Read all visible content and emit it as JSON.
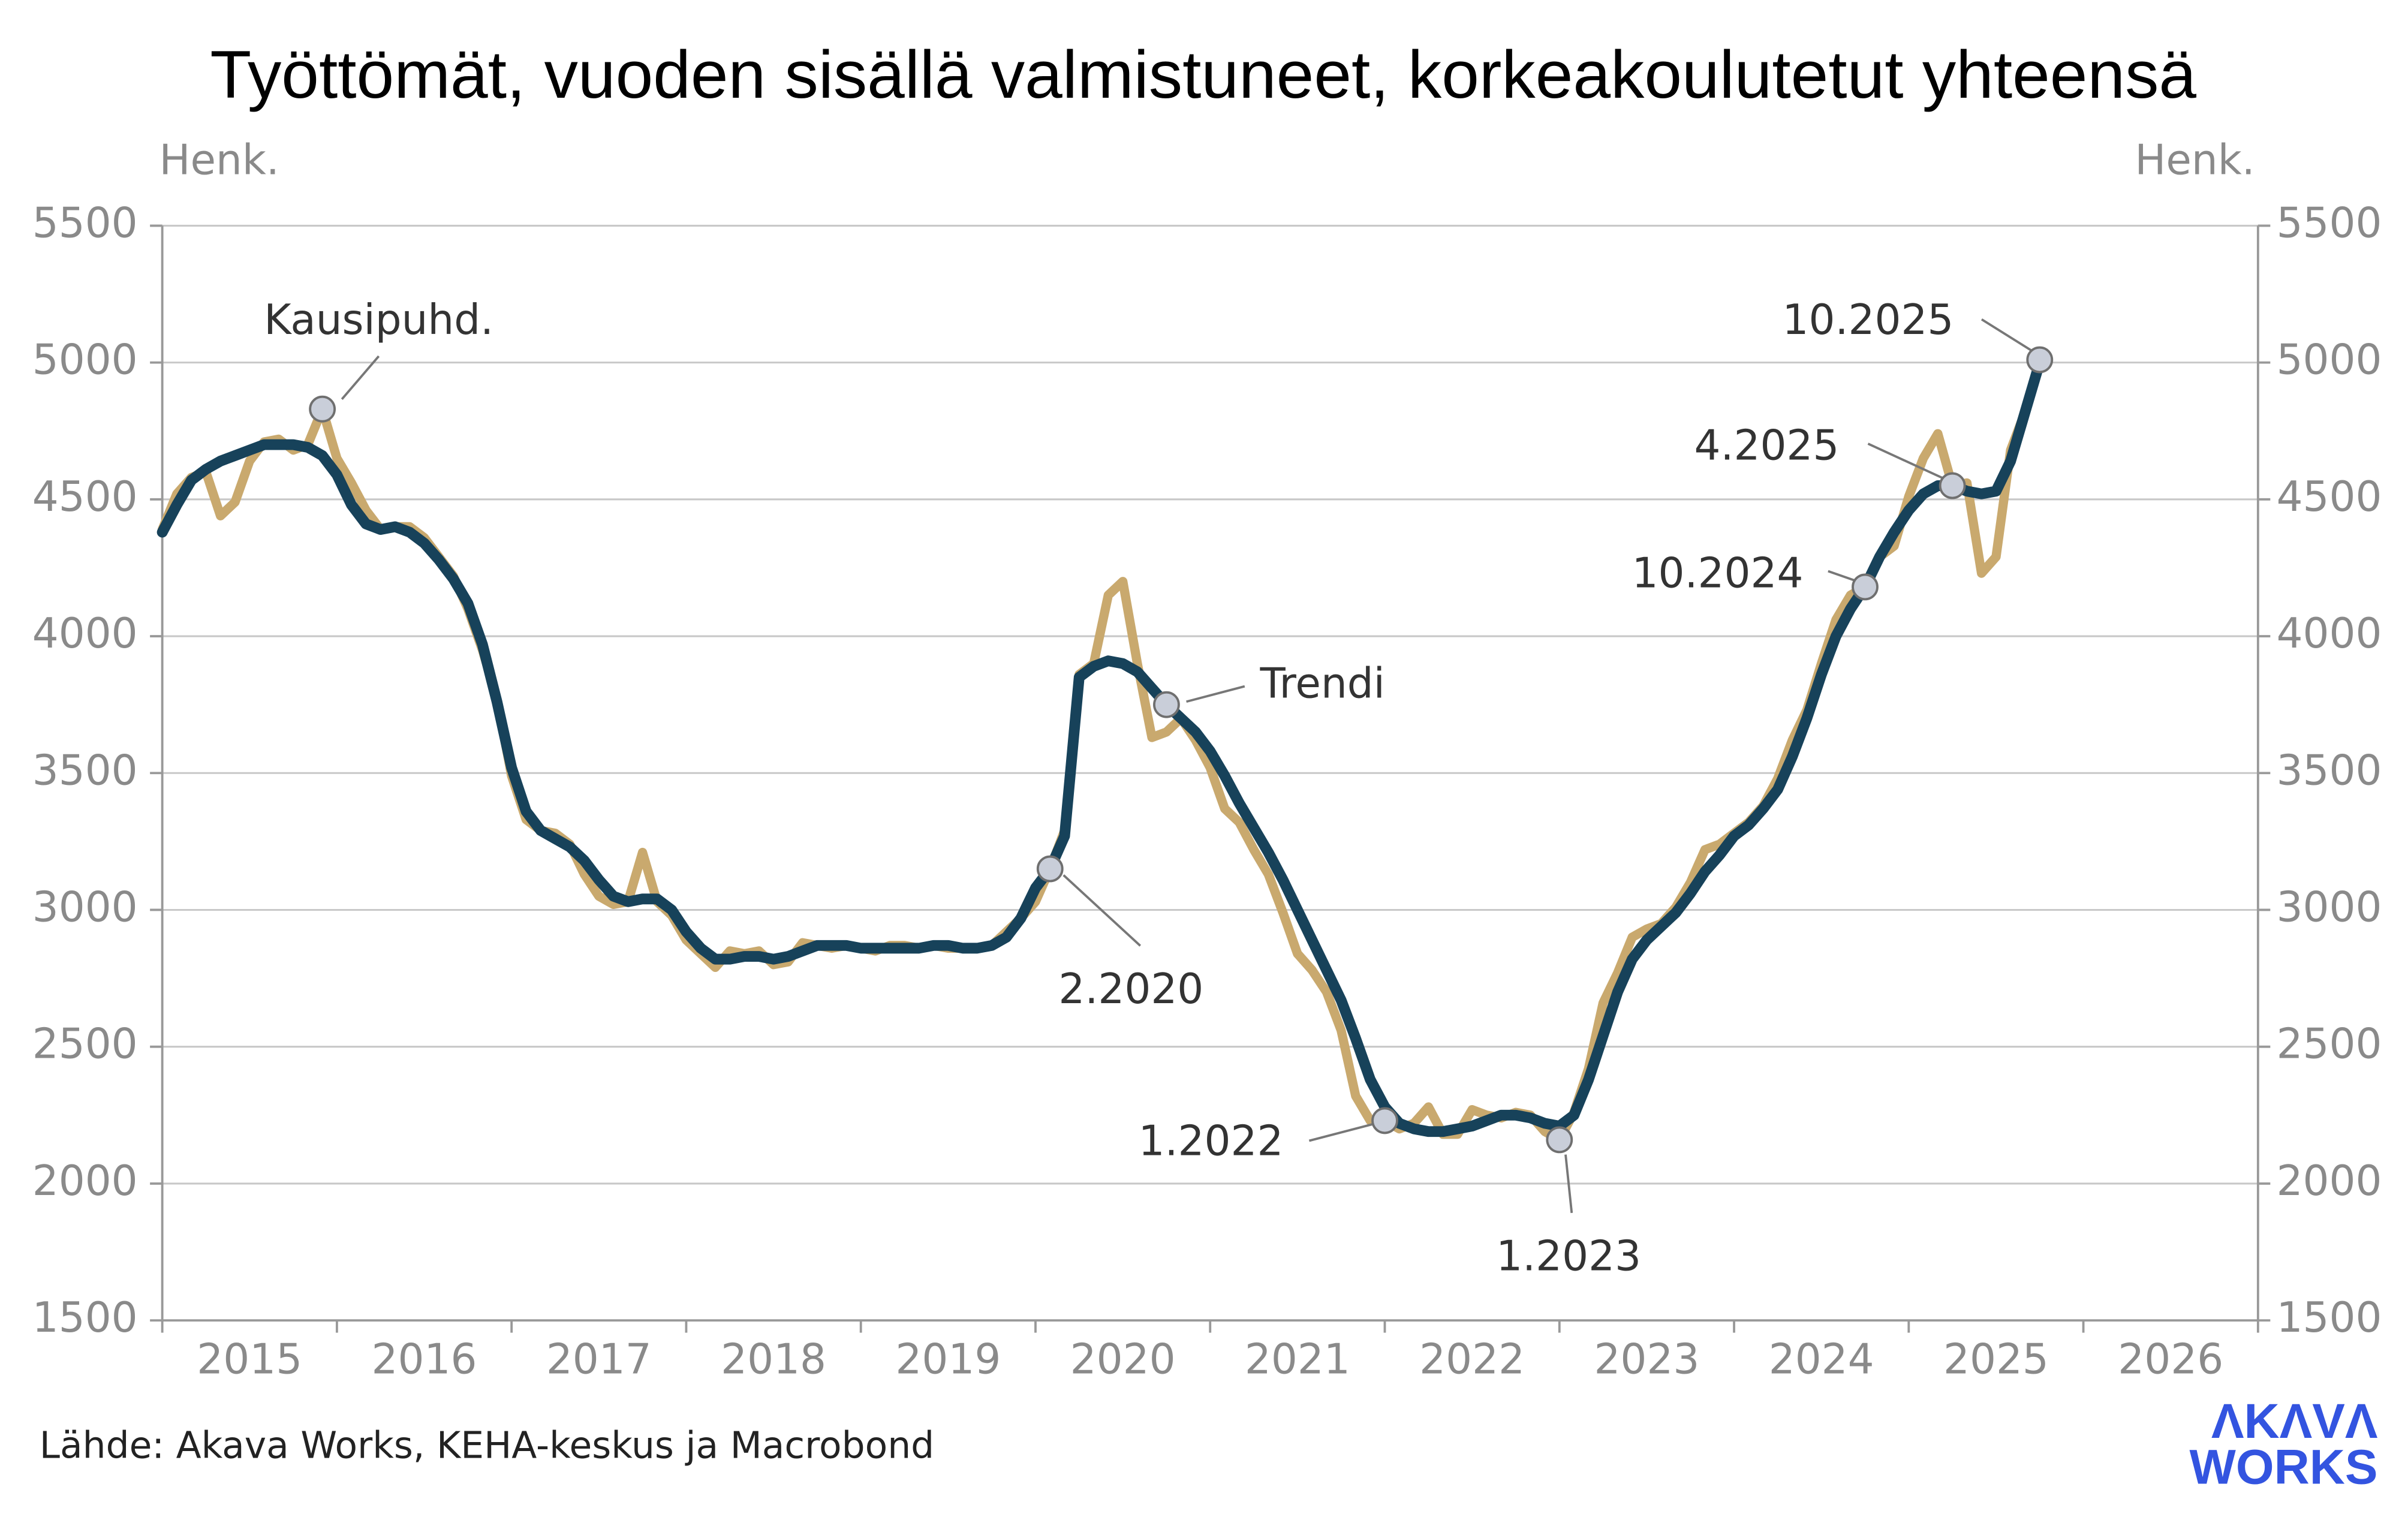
{
  "chart_data": {
    "type": "line",
    "title": "Työttömät, vuoden sisällä valmistuneet, korkeakoulutetut yhteensä",
    "y_label": "Henk.",
    "y2_label": "Henk.",
    "source": "Lähde: Akava Works, KEHA-keskus ja Macrobond",
    "logo": [
      "ΛKΛVΛ",
      "WORKS"
    ],
    "grid": true,
    "xlim": [
      2015,
      2027
    ],
    "xticks": [
      2015,
      2016,
      2017,
      2018,
      2019,
      2020,
      2021,
      2022,
      2023,
      2024,
      2025,
      2026
    ],
    "ylim": [
      1500,
      5500
    ],
    "yticks": [
      1500,
      2000,
      2500,
      3000,
      3500,
      4000,
      4500,
      5000,
      5500
    ],
    "y2lim": [
      1500,
      5500
    ],
    "y2ticks": [
      1500,
      2000,
      2500,
      3000,
      3500,
      4000,
      4500,
      5000,
      5500
    ],
    "x": [
      "2015-01",
      "2015-02",
      "2015-03",
      "2015-04",
      "2015-05",
      "2015-06",
      "2015-07",
      "2015-08",
      "2015-09",
      "2015-10",
      "2015-11",
      "2015-12",
      "2016-01",
      "2016-02",
      "2016-03",
      "2016-04",
      "2016-05",
      "2016-06",
      "2016-07",
      "2016-08",
      "2016-09",
      "2016-10",
      "2016-11",
      "2016-12",
      "2017-01",
      "2017-02",
      "2017-03",
      "2017-04",
      "2017-05",
      "2017-06",
      "2017-07",
      "2017-08",
      "2017-09",
      "2017-10",
      "2017-11",
      "2017-12",
      "2018-01",
      "2018-02",
      "2018-03",
      "2018-04",
      "2018-05",
      "2018-06",
      "2018-07",
      "2018-08",
      "2018-09",
      "2018-10",
      "2018-11",
      "2018-12",
      "2019-01",
      "2019-02",
      "2019-03",
      "2019-04",
      "2019-05",
      "2019-06",
      "2019-07",
      "2019-08",
      "2019-09",
      "2019-10",
      "2019-11",
      "2019-12",
      "2020-01",
      "2020-02",
      "2020-03",
      "2020-04",
      "2020-05",
      "2020-06",
      "2020-07",
      "2020-08",
      "2020-09",
      "2020-10",
      "2020-11",
      "2020-12",
      "2021-01",
      "2021-02",
      "2021-03",
      "2021-04",
      "2021-05",
      "2021-06",
      "2021-07",
      "2021-08",
      "2021-09",
      "2021-10",
      "2021-11",
      "2021-12",
      "2022-01",
      "2022-02",
      "2022-03",
      "2022-04",
      "2022-05",
      "2022-06",
      "2022-07",
      "2022-08",
      "2022-09",
      "2022-10",
      "2022-11",
      "2022-12",
      "2023-01",
      "2023-02",
      "2023-03",
      "2023-04",
      "2023-05",
      "2023-06",
      "2023-07",
      "2023-08",
      "2023-09",
      "2023-10",
      "2023-11",
      "2023-12",
      "2024-01",
      "2024-02",
      "2024-03",
      "2024-04",
      "2024-05",
      "2024-06",
      "2024-07",
      "2024-08",
      "2024-09",
      "2024-10",
      "2024-11",
      "2024-12",
      "2025-01",
      "2025-02",
      "2025-03",
      "2025-04",
      "2025-05",
      "2025-06",
      "2025-07",
      "2025-08",
      "2025-09",
      "2025-10"
    ],
    "series": [
      {
        "name": "Kausipuhd.",
        "color": "#c9a96e",
        "values": [
          4390,
          4520,
          4580,
          4600,
          4440,
          4490,
          4640,
          4710,
          4720,
          4680,
          4700,
          4830,
          4650,
          4560,
          4460,
          4390,
          4400,
          4400,
          4360,
          4290,
          4220,
          4100,
          3950,
          3770,
          3490,
          3330,
          3290,
          3280,
          3240,
          3130,
          3050,
          3020,
          3030,
          3210,
          3030,
          2980,
          2890,
          2840,
          2790,
          2850,
          2840,
          2850,
          2800,
          2810,
          2880,
          2870,
          2860,
          2870,
          2860,
          2850,
          2870,
          2870,
          2860,
          2870,
          2860,
          2860,
          2860,
          2870,
          2920,
          2970,
          3030,
          3150,
          3290,
          3860,
          3900,
          4150,
          4200,
          3900,
          3630,
          3650,
          3700,
          3620,
          3520,
          3370,
          3320,
          3220,
          3130,
          2990,
          2840,
          2780,
          2700,
          2560,
          2320,
          2230,
          2230,
          2200,
          2220,
          2280,
          2180,
          2180,
          2270,
          2250,
          2240,
          2260,
          2250,
          2190,
          2160,
          2260,
          2420,
          2660,
          2770,
          2900,
          2930,
          2950,
          3010,
          3100,
          3220,
          3240,
          3280,
          3320,
          3380,
          3480,
          3620,
          3730,
          3900,
          4060,
          4150,
          4180,
          4290,
          4330,
          4510,
          4650,
          4740,
          4550,
          4560,
          4230,
          4290,
          4680,
          4820,
          5010
        ]
      },
      {
        "name": "Trendi",
        "color": "#17425a",
        "values": [
          4380,
          4480,
          4570,
          4610,
          4640,
          4660,
          4680,
          4700,
          4700,
          4700,
          4690,
          4660,
          4590,
          4480,
          4410,
          4390,
          4400,
          4380,
          4340,
          4280,
          4210,
          4120,
          3970,
          3760,
          3520,
          3360,
          3290,
          3260,
          3230,
          3180,
          3110,
          3050,
          3030,
          3040,
          3040,
          3000,
          2920,
          2860,
          2820,
          2820,
          2830,
          2830,
          2820,
          2830,
          2850,
          2870,
          2870,
          2870,
          2860,
          2860,
          2860,
          2860,
          2860,
          2870,
          2870,
          2860,
          2860,
          2870,
          2900,
          2970,
          3080,
          3150,
          3270,
          3850,
          3890,
          3910,
          3900,
          3870,
          3810,
          3750,
          3700,
          3650,
          3580,
          3490,
          3390,
          3300,
          3210,
          3110,
          3000,
          2890,
          2780,
          2670,
          2530,
          2380,
          2280,
          2220,
          2200,
          2190,
          2190,
          2200,
          2210,
          2230,
          2250,
          2250,
          2240,
          2220,
          2210,
          2250,
          2380,
          2540,
          2700,
          2820,
          2890,
          2940,
          2990,
          3060,
          3140,
          3200,
          3270,
          3310,
          3370,
          3440,
          3560,
          3700,
          3860,
          4000,
          4100,
          4180,
          4290,
          4380,
          4460,
          4520,
          4550,
          4550,
          4530,
          4520,
          4530,
          4640,
          4820,
          5000
        ]
      }
    ],
    "annotations": [
      {
        "text": "Kausipuhd.",
        "x": "2015-12",
        "y": 4830
      },
      {
        "text": "Trendi",
        "x": "2020-10",
        "y": 3750
      },
      {
        "text": "2.2020",
        "x": "2020-02",
        "y": 3150
      },
      {
        "text": "1.2022",
        "x": "2022-01",
        "y": 2230
      },
      {
        "text": "1.2023",
        "x": "2023-01",
        "y": 2160
      },
      {
        "text": "10.2024",
        "x": "2024-10",
        "y": 4180
      },
      {
        "text": "4.2025",
        "x": "2025-04",
        "y": 4550
      },
      {
        "text": "10.2025",
        "x": "2025-10",
        "y": 5010
      }
    ]
  }
}
